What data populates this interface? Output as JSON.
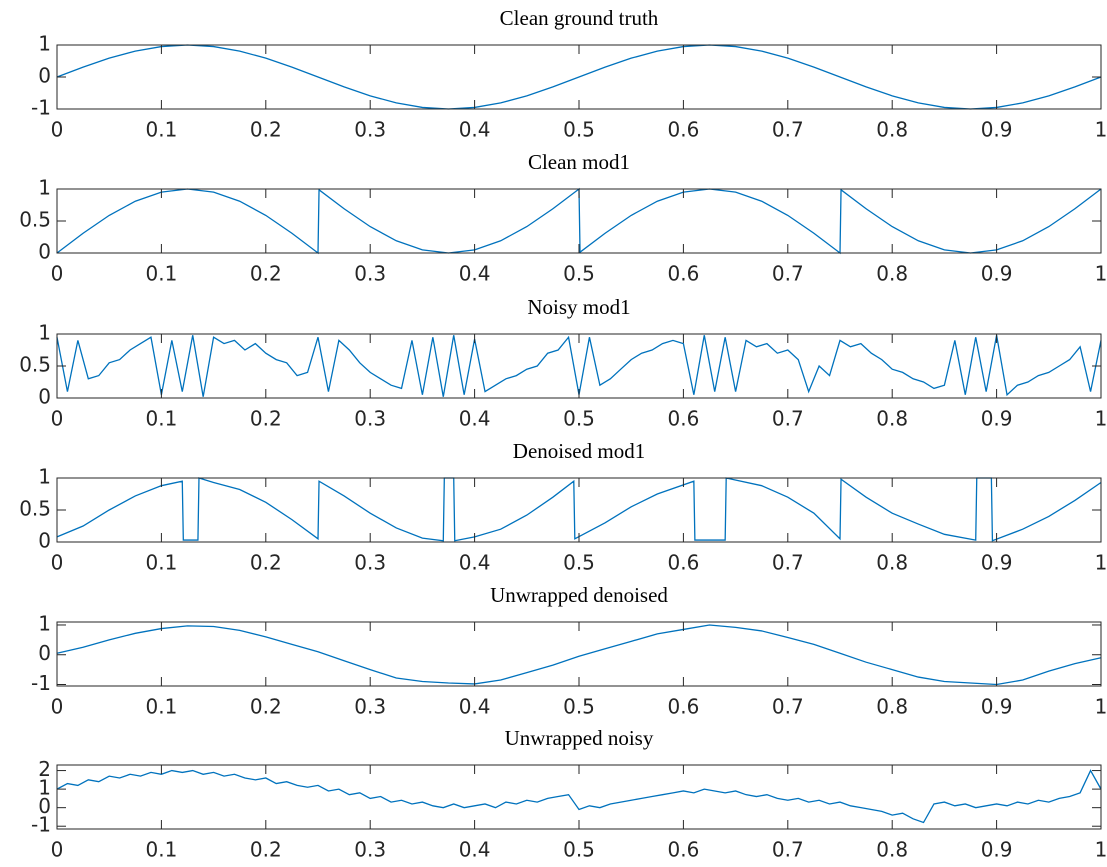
{
  "chart_data": [
    {
      "type": "line",
      "title": "Clean ground truth",
      "x": [
        0,
        0.025,
        0.05,
        0.075,
        0.1,
        0.125,
        0.15,
        0.175,
        0.2,
        0.225,
        0.25,
        0.275,
        0.3,
        0.325,
        0.35,
        0.375,
        0.4,
        0.425,
        0.45,
        0.475,
        0.5,
        0.525,
        0.55,
        0.575,
        0.6,
        0.625,
        0.65,
        0.675,
        0.7,
        0.725,
        0.75,
        0.775,
        0.8,
        0.825,
        0.85,
        0.875,
        0.9,
        0.925,
        0.95,
        0.975,
        1
      ],
      "series": [
        {
          "color": "#0072bd",
          "values": [
            0,
            0.309,
            0.588,
            0.809,
            0.951,
            1,
            0.951,
            0.809,
            0.588,
            0.309,
            0,
            -0.309,
            -0.588,
            -0.809,
            -0.951,
            -1,
            -0.951,
            -0.809,
            -0.588,
            -0.309,
            0,
            0.309,
            0.588,
            0.809,
            0.951,
            1,
            0.951,
            0.809,
            0.588,
            0.309,
            0,
            -0.309,
            -0.588,
            -0.809,
            -0.951,
            -1,
            -0.951,
            -0.809,
            -0.588,
            -0.309,
            0
          ]
        }
      ],
      "xlim": [
        0,
        1
      ],
      "xticks": [
        0,
        0.1,
        0.2,
        0.3,
        0.4,
        0.5,
        0.6,
        0.7,
        0.8,
        0.9,
        1
      ],
      "ylim": [
        -1,
        1
      ],
      "yticks": [
        -1,
        0,
        1
      ]
    },
    {
      "type": "line",
      "title": "Clean mod1",
      "x": [
        0,
        0.025,
        0.05,
        0.075,
        0.1,
        0.125,
        0.15,
        0.175,
        0.2,
        0.225,
        0.25,
        0.251,
        0.275,
        0.3,
        0.325,
        0.35,
        0.375,
        0.4,
        0.425,
        0.45,
        0.475,
        0.5,
        0.501,
        0.525,
        0.55,
        0.575,
        0.6,
        0.625,
        0.65,
        0.675,
        0.7,
        0.725,
        0.75,
        0.751,
        0.775,
        0.8,
        0.825,
        0.85,
        0.875,
        0.9,
        0.925,
        0.95,
        0.975,
        1
      ],
      "series": [
        {
          "color": "#0072bd",
          "values": [
            0,
            0.309,
            0.588,
            0.809,
            0.951,
            1,
            0.951,
            0.809,
            0.588,
            0.309,
            0,
            0.987,
            0.691,
            0.412,
            0.191,
            0.049,
            0,
            0.049,
            0.191,
            0.412,
            0.691,
            1,
            0.013,
            0.309,
            0.588,
            0.809,
            0.951,
            1,
            0.951,
            0.809,
            0.588,
            0.309,
            0,
            0.987,
            0.691,
            0.412,
            0.191,
            0.049,
            0,
            0.049,
            0.191,
            0.412,
            0.691,
            1
          ]
        }
      ],
      "xlim": [
        0,
        1
      ],
      "xticks": [
        0,
        0.1,
        0.2,
        0.3,
        0.4,
        0.5,
        0.6,
        0.7,
        0.8,
        0.9,
        1
      ],
      "ylim": [
        0,
        1
      ],
      "yticks": [
        0,
        0.5,
        1
      ]
    },
    {
      "type": "line",
      "title": "Noisy mod1",
      "x": [
        0,
        0.01,
        0.02,
        0.03,
        0.04,
        0.05,
        0.06,
        0.07,
        0.08,
        0.09,
        0.1,
        0.11,
        0.12,
        0.13,
        0.14,
        0.15,
        0.16,
        0.17,
        0.18,
        0.19,
        0.2,
        0.21,
        0.22,
        0.23,
        0.24,
        0.25,
        0.26,
        0.27,
        0.28,
        0.29,
        0.3,
        0.31,
        0.32,
        0.33,
        0.34,
        0.35,
        0.36,
        0.37,
        0.38,
        0.39,
        0.4,
        0.41,
        0.42,
        0.43,
        0.44,
        0.45,
        0.46,
        0.47,
        0.48,
        0.49,
        0.5,
        0.51,
        0.52,
        0.53,
        0.54,
        0.55,
        0.56,
        0.57,
        0.58,
        0.59,
        0.6,
        0.61,
        0.62,
        0.63,
        0.64,
        0.65,
        0.66,
        0.67,
        0.68,
        0.69,
        0.7,
        0.71,
        0.72,
        0.73,
        0.74,
        0.75,
        0.76,
        0.77,
        0.78,
        0.79,
        0.8,
        0.81,
        0.82,
        0.83,
        0.84,
        0.85,
        0.86,
        0.87,
        0.88,
        0.89,
        0.9,
        0.91,
        0.92,
        0.93,
        0.94,
        0.95,
        0.96,
        0.97,
        0.98,
        0.99,
        1
      ],
      "series": [
        {
          "color": "#0072bd",
          "values": [
            0.95,
            0.1,
            0.9,
            0.3,
            0.35,
            0.55,
            0.6,
            0.75,
            0.85,
            0.95,
            0.05,
            0.9,
            0.1,
            0.98,
            0.02,
            0.95,
            0.85,
            0.9,
            0.75,
            0.85,
            0.7,
            0.6,
            0.55,
            0.35,
            0.4,
            0.95,
            0.1,
            0.9,
            0.75,
            0.55,
            0.4,
            0.3,
            0.2,
            0.15,
            0.9,
            0.05,
            0.95,
            0.02,
            0.98,
            0.05,
            0.92,
            0.1,
            0.2,
            0.3,
            0.35,
            0.45,
            0.5,
            0.7,
            0.75,
            0.95,
            0.05,
            0.95,
            0.2,
            0.3,
            0.45,
            0.6,
            0.7,
            0.75,
            0.85,
            0.9,
            0.85,
            0.05,
            0.98,
            0.1,
            0.95,
            0.1,
            0.9,
            0.8,
            0.85,
            0.7,
            0.75,
            0.6,
            0.1,
            0.5,
            0.35,
            0.9,
            0.8,
            0.85,
            0.7,
            0.6,
            0.45,
            0.4,
            0.3,
            0.25,
            0.15,
            0.2,
            0.9,
            0.05,
            0.95,
            0.1,
            0.98,
            0.05,
            0.2,
            0.25,
            0.35,
            0.4,
            0.5,
            0.6,
            0.8,
            0.1,
            0.9
          ]
        }
      ],
      "xlim": [
        0,
        1
      ],
      "xticks": [
        0,
        0.1,
        0.2,
        0.3,
        0.4,
        0.5,
        0.6,
        0.7,
        0.8,
        0.9,
        1
      ],
      "ylim": [
        0,
        1
      ],
      "yticks": [
        0,
        0.5,
        1
      ]
    },
    {
      "type": "line",
      "title": "Denoised mod1",
      "x": [
        0,
        0.025,
        0.05,
        0.075,
        0.1,
        0.12,
        0.121,
        0.135,
        0.136,
        0.15,
        0.175,
        0.2,
        0.225,
        0.25,
        0.251,
        0.275,
        0.3,
        0.325,
        0.35,
        0.37,
        0.371,
        0.38,
        0.381,
        0.4,
        0.425,
        0.45,
        0.475,
        0.495,
        0.496,
        0.525,
        0.55,
        0.575,
        0.61,
        0.611,
        0.64,
        0.641,
        0.675,
        0.7,
        0.725,
        0.75,
        0.751,
        0.775,
        0.8,
        0.825,
        0.85,
        0.88,
        0.881,
        0.895,
        0.896,
        0.925,
        0.95,
        0.975,
        1
      ],
      "series": [
        {
          "color": "#0072bd",
          "values": [
            0.08,
            0.25,
            0.5,
            0.72,
            0.88,
            0.95,
            0.03,
            0.03,
            1,
            0.93,
            0.82,
            0.62,
            0.35,
            0.05,
            0.95,
            0.72,
            0.45,
            0.22,
            0.06,
            0.02,
            1,
            1,
            0.02,
            0.08,
            0.2,
            0.42,
            0.7,
            0.95,
            0.05,
            0.3,
            0.55,
            0.75,
            0.95,
            0.03,
            0.03,
            1,
            0.88,
            0.7,
            0.45,
            0.05,
            0.98,
            0.7,
            0.45,
            0.28,
            0.12,
            0.03,
            1,
            1,
            0.02,
            0.2,
            0.4,
            0.65,
            0.93
          ]
        }
      ],
      "xlim": [
        0,
        1
      ],
      "xticks": [
        0,
        0.1,
        0.2,
        0.3,
        0.4,
        0.5,
        0.6,
        0.7,
        0.8,
        0.9,
        1
      ],
      "ylim": [
        0,
        1
      ],
      "yticks": [
        0,
        0.5,
        1
      ]
    },
    {
      "type": "line",
      "title": "Unwrapped denoised",
      "x": [
        0,
        0.025,
        0.05,
        0.075,
        0.1,
        0.125,
        0.15,
        0.175,
        0.2,
        0.225,
        0.25,
        0.275,
        0.3,
        0.325,
        0.35,
        0.375,
        0.4,
        0.425,
        0.45,
        0.475,
        0.5,
        0.525,
        0.55,
        0.575,
        0.6,
        0.625,
        0.65,
        0.675,
        0.7,
        0.725,
        0.75,
        0.775,
        0.8,
        0.825,
        0.85,
        0.875,
        0.9,
        0.925,
        0.95,
        0.975,
        1
      ],
      "series": [
        {
          "color": "#0072bd",
          "values": [
            0.05,
            0.25,
            0.5,
            0.72,
            0.88,
            0.97,
            0.95,
            0.82,
            0.6,
            0.35,
            0.1,
            -0.2,
            -0.5,
            -0.78,
            -0.9,
            -0.95,
            -0.98,
            -0.85,
            -0.6,
            -0.35,
            -0.05,
            0.2,
            0.45,
            0.7,
            0.85,
            1,
            0.92,
            0.8,
            0.58,
            0.35,
            0.05,
            -0.25,
            -0.5,
            -0.75,
            -0.9,
            -0.95,
            -1,
            -0.85,
            -0.55,
            -0.3,
            -0.1
          ]
        }
      ],
      "xlim": [
        0,
        1
      ],
      "xticks": [
        0,
        0.1,
        0.2,
        0.3,
        0.4,
        0.5,
        0.6,
        0.7,
        0.8,
        0.9,
        1
      ],
      "ylim": [
        -1.05,
        1.1
      ],
      "yticks": [
        -1,
        0,
        1
      ]
    },
    {
      "type": "line",
      "title": "Unwrapped noisy",
      "x": [
        0,
        0.01,
        0.02,
        0.03,
        0.04,
        0.05,
        0.06,
        0.07,
        0.08,
        0.09,
        0.1,
        0.11,
        0.12,
        0.13,
        0.14,
        0.15,
        0.16,
        0.17,
        0.18,
        0.19,
        0.2,
        0.21,
        0.22,
        0.23,
        0.24,
        0.25,
        0.26,
        0.27,
        0.28,
        0.29,
        0.3,
        0.31,
        0.32,
        0.33,
        0.34,
        0.35,
        0.36,
        0.37,
        0.38,
        0.39,
        0.4,
        0.41,
        0.42,
        0.43,
        0.44,
        0.45,
        0.46,
        0.47,
        0.48,
        0.49,
        0.5,
        0.51,
        0.52,
        0.53,
        0.54,
        0.55,
        0.56,
        0.57,
        0.58,
        0.59,
        0.6,
        0.61,
        0.62,
        0.63,
        0.64,
        0.65,
        0.66,
        0.67,
        0.68,
        0.69,
        0.7,
        0.71,
        0.72,
        0.73,
        0.74,
        0.75,
        0.76,
        0.77,
        0.78,
        0.79,
        0.8,
        0.81,
        0.82,
        0.83,
        0.84,
        0.85,
        0.86,
        0.87,
        0.88,
        0.89,
        0.9,
        0.91,
        0.92,
        0.93,
        0.94,
        0.95,
        0.96,
        0.97,
        0.98,
        0.99,
        1
      ],
      "series": [
        {
          "color": "#0072bd",
          "values": [
            1.0,
            1.3,
            1.2,
            1.5,
            1.4,
            1.7,
            1.6,
            1.8,
            1.7,
            1.9,
            1.8,
            2.0,
            1.9,
            2.0,
            1.8,
            1.9,
            1.7,
            1.8,
            1.6,
            1.5,
            1.6,
            1.3,
            1.4,
            1.2,
            1.1,
            1.2,
            0.9,
            1.0,
            0.7,
            0.8,
            0.5,
            0.6,
            0.3,
            0.4,
            0.2,
            0.3,
            0.1,
            0.0,
            0.2,
            0.0,
            0.1,
            0.2,
            0.0,
            0.3,
            0.2,
            0.4,
            0.3,
            0.5,
            0.6,
            0.7,
            -0.1,
            0.1,
            0.0,
            0.2,
            0.3,
            0.4,
            0.5,
            0.6,
            0.7,
            0.8,
            0.9,
            0.8,
            1.0,
            0.9,
            0.8,
            0.9,
            0.7,
            0.6,
            0.7,
            0.5,
            0.4,
            0.5,
            0.3,
            0.4,
            0.2,
            0.3,
            0.1,
            0.0,
            -0.1,
            -0.2,
            -0.4,
            -0.3,
            -0.6,
            -0.8,
            0.2,
            0.3,
            0.1,
            0.2,
            0.0,
            0.1,
            0.2,
            0.1,
            0.3,
            0.2,
            0.4,
            0.3,
            0.5,
            0.6,
            0.8,
            2.0,
            1.0
          ]
        }
      ],
      "xlim": [
        0,
        1
      ],
      "xticks": [
        0,
        0.1,
        0.2,
        0.3,
        0.4,
        0.5,
        0.6,
        0.7,
        0.8,
        0.9,
        1
      ],
      "ylim": [
        -1.15,
        2.3
      ],
      "yticks": [
        -1,
        0,
        1,
        2
      ]
    }
  ]
}
